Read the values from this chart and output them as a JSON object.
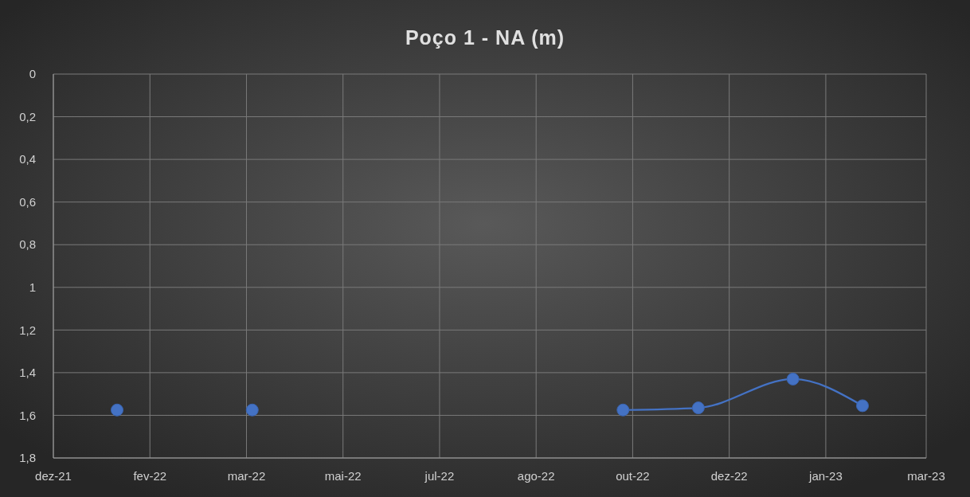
{
  "chart_data": {
    "type": "line",
    "title": "Poço 1 - NA (m)",
    "xlim": [
      "2021-12-18",
      "2023-03-15"
    ],
    "xticks": [
      {
        "value": "2021-12-18",
        "label": "dez-21"
      },
      {
        "value": "2022-02-06",
        "label": "fev-22"
      },
      {
        "value": "2022-03-28",
        "label": "mar-22"
      },
      {
        "value": "2022-05-17",
        "label": "mai-22"
      },
      {
        "value": "2022-07-06",
        "label": "jul-22"
      },
      {
        "value": "2022-08-25",
        "label": "ago-22"
      },
      {
        "value": "2022-10-14",
        "label": "out-22"
      },
      {
        "value": "2022-12-03",
        "label": "dez-22"
      },
      {
        "value": "2023-01-22",
        "label": "jan-23"
      },
      {
        "value": "2023-03-15",
        "label": "mar-23"
      }
    ],
    "ylim": [
      1.8,
      0
    ],
    "yticks": [
      {
        "value": 0,
        "label": "0"
      },
      {
        "value": 0.2,
        "label": "0,2"
      },
      {
        "value": 0.4,
        "label": "0,4"
      },
      {
        "value": 0.6,
        "label": "0,6"
      },
      {
        "value": 0.8,
        "label": "0,8"
      },
      {
        "value": 1,
        "label": "1"
      },
      {
        "value": 1.2,
        "label": "1,2"
      },
      {
        "value": 1.4,
        "label": "1,4"
      },
      {
        "value": 1.6,
        "label": "1,6"
      },
      {
        "value": 1.8,
        "label": "1,8"
      }
    ],
    "grid": true,
    "marker": "circle",
    "line_style": "solid",
    "series": [
      {
        "type": "scatter",
        "color": "#4472c4",
        "x": [
          "2022-01-20",
          "2022-03-31"
        ],
        "values": [
          1.575,
          1.575
        ]
      },
      {
        "color": "#4472c4",
        "x": [
          "2022-10-09",
          "2022-11-17",
          "2023-01-05",
          "2023-02-10"
        ],
        "values": [
          1.575,
          1.565,
          1.43,
          1.555
        ]
      }
    ]
  }
}
